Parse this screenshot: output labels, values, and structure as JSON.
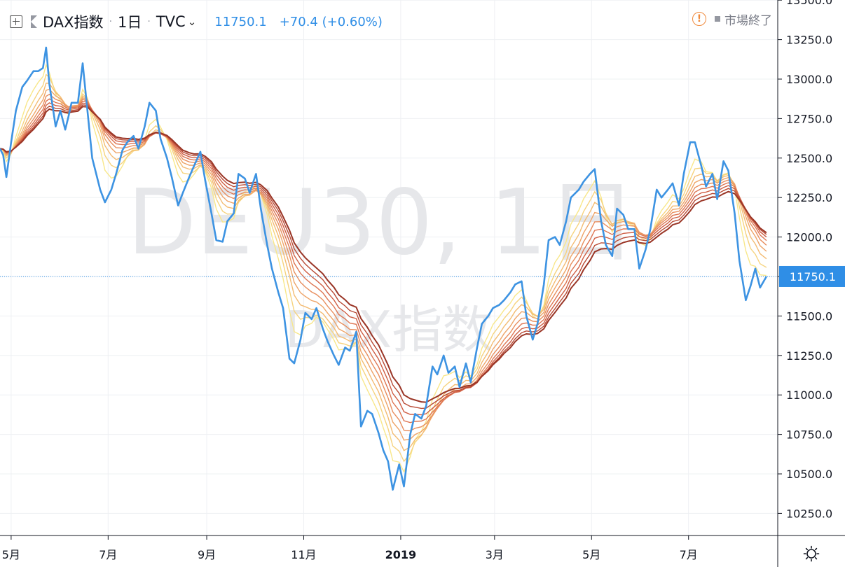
{
  "header": {
    "symbol": "DAX指数",
    "interval": "1日",
    "source": "TVC",
    "last_price": "11750.1",
    "change": "+70.4 (+0.60%)"
  },
  "status": {
    "market": "市場終了"
  },
  "watermark": {
    "line1": "DEU30, 1日",
    "line2": "DAX指数"
  },
  "colors": {
    "price_line": "#3d93e2",
    "ribbon": [
      "#f8e78a",
      "#f6d37e",
      "#f3bb72",
      "#eea468",
      "#e88e5e",
      "#dd7552",
      "#cf5e44",
      "#b84a35",
      "#9a3526"
    ],
    "grid": "#eef0f3",
    "axis_text": "#131722",
    "badge": "#2f8ee6"
  },
  "chart_data": {
    "type": "line",
    "title": "",
    "y_axis": {
      "ticks": [
        13500,
        13250,
        13000,
        12750,
        12500,
        12250,
        12000,
        11750,
        11500,
        11250,
        11000,
        10750,
        10500,
        10250
      ],
      "tick_labels": [
        "13500.0",
        "13250.0",
        "13000.0",
        "12750.0",
        "12500.0",
        "12250.0",
        "12000.0",
        "11750.0",
        "11500.0",
        "11250.0",
        "11000.0",
        "10750.0",
        "10500.0",
        "10250.0"
      ]
    },
    "x_axis": {
      "range": [
        "2018-04-24",
        "2019-08-23"
      ],
      "ticks": [
        {
          "date": "2018-05-01",
          "label": "5月",
          "bold": false
        },
        {
          "date": "2018-07-01",
          "label": "7月",
          "bold": false
        },
        {
          "date": "2018-09-01",
          "label": "9月",
          "bold": false
        },
        {
          "date": "2018-11-01",
          "label": "11月",
          "bold": false
        },
        {
          "date": "2019-01-01",
          "label": "2019",
          "bold": true
        },
        {
          "date": "2019-03-01",
          "label": "3月",
          "bold": false
        },
        {
          "date": "2019-05-01",
          "label": "5月",
          "bold": false
        },
        {
          "date": "2019-07-01",
          "label": "7月",
          "bold": false
        }
      ]
    },
    "last_value": {
      "value": 11750.1,
      "label": "11750.1"
    },
    "series": [
      {
        "values": [
          [
            "2018-04-24",
            12560
          ],
          [
            "2018-04-26",
            12520
          ],
          [
            "2018-04-28",
            12380
          ],
          [
            "2018-05-01",
            12600
          ],
          [
            "2018-05-04",
            12800
          ],
          [
            "2018-05-08",
            12950
          ],
          [
            "2018-05-11",
            12990
          ],
          [
            "2018-05-15",
            13050
          ],
          [
            "2018-05-18",
            13050
          ],
          [
            "2018-05-21",
            13070
          ],
          [
            "2018-05-23",
            13200
          ],
          [
            "2018-05-25",
            12970
          ],
          [
            "2018-05-29",
            12700
          ],
          [
            "2018-06-01",
            12800
          ],
          [
            "2018-06-04",
            12680
          ],
          [
            "2018-06-06",
            12760
          ],
          [
            "2018-06-08",
            12850
          ],
          [
            "2018-06-12",
            12850
          ],
          [
            "2018-06-15",
            13100
          ],
          [
            "2018-06-18",
            12800
          ],
          [
            "2018-06-21",
            12500
          ],
          [
            "2018-06-26",
            12300
          ],
          [
            "2018-06-29",
            12220
          ],
          [
            "2018-07-03",
            12300
          ],
          [
            "2018-07-06",
            12400
          ],
          [
            "2018-07-10",
            12550
          ],
          [
            "2018-07-13",
            12600
          ],
          [
            "2018-07-17",
            12640
          ],
          [
            "2018-07-20",
            12560
          ],
          [
            "2018-07-24",
            12700
          ],
          [
            "2018-07-27",
            12850
          ],
          [
            "2018-07-31",
            12800
          ],
          [
            "2018-08-03",
            12620
          ],
          [
            "2018-08-07",
            12500
          ],
          [
            "2018-08-10",
            12380
          ],
          [
            "2018-08-14",
            12200
          ],
          [
            "2018-08-17",
            12280
          ],
          [
            "2018-08-21",
            12380
          ],
          [
            "2018-08-24",
            12450
          ],
          [
            "2018-08-28",
            12540
          ],
          [
            "2018-08-31",
            12360
          ],
          [
            "2018-09-04",
            12150
          ],
          [
            "2018-09-07",
            11980
          ],
          [
            "2018-09-11",
            11970
          ],
          [
            "2018-09-14",
            12100
          ],
          [
            "2018-09-18",
            12150
          ],
          [
            "2018-09-21",
            12400
          ],
          [
            "2018-09-25",
            12370
          ],
          [
            "2018-09-28",
            12280
          ],
          [
            "2018-10-02",
            12400
          ],
          [
            "2018-10-05",
            12180
          ],
          [
            "2018-10-09",
            11950
          ],
          [
            "2018-10-12",
            11800
          ],
          [
            "2018-10-16",
            11650
          ],
          [
            "2018-10-19",
            11550
          ],
          [
            "2018-10-23",
            11230
          ],
          [
            "2018-10-26",
            11200
          ],
          [
            "2018-10-30",
            11350
          ],
          [
            "2018-11-02",
            11520
          ],
          [
            "2018-11-06",
            11480
          ],
          [
            "2018-11-09",
            11550
          ],
          [
            "2018-11-13",
            11420
          ],
          [
            "2018-11-16",
            11340
          ],
          [
            "2018-11-20",
            11250
          ],
          [
            "2018-11-23",
            11190
          ],
          [
            "2018-11-27",
            11300
          ],
          [
            "2018-11-30",
            11280
          ],
          [
            "2018-12-04",
            11400
          ],
          [
            "2018-12-07",
            10800
          ],
          [
            "2018-12-11",
            10900
          ],
          [
            "2018-12-14",
            10880
          ],
          [
            "2018-12-18",
            10760
          ],
          [
            "2018-12-21",
            10650
          ],
          [
            "2018-12-24",
            10580
          ],
          [
            "2018-12-27",
            10400
          ],
          [
            "2018-12-31",
            10560
          ],
          [
            "2019-01-03",
            10420
          ],
          [
            "2019-01-07",
            10750
          ],
          [
            "2019-01-10",
            10880
          ],
          [
            "2019-01-14",
            10850
          ],
          [
            "2019-01-17",
            10930
          ],
          [
            "2019-01-21",
            11180
          ],
          [
            "2019-01-24",
            11130
          ],
          [
            "2019-01-28",
            11250
          ],
          [
            "2019-01-31",
            11140
          ],
          [
            "2019-02-04",
            11180
          ],
          [
            "2019-02-07",
            11050
          ],
          [
            "2019-02-11",
            11200
          ],
          [
            "2019-02-14",
            11080
          ],
          [
            "2019-02-18",
            11300
          ],
          [
            "2019-02-21",
            11450
          ],
          [
            "2019-02-25",
            11500
          ],
          [
            "2019-02-28",
            11550
          ],
          [
            "2019-03-04",
            11570
          ],
          [
            "2019-03-07",
            11600
          ],
          [
            "2019-03-11",
            11650
          ],
          [
            "2019-03-14",
            11700
          ],
          [
            "2019-03-18",
            11720
          ],
          [
            "2019-03-21",
            11500
          ],
          [
            "2019-03-25",
            11350
          ],
          [
            "2019-03-28",
            11450
          ],
          [
            "2019-04-01",
            11700
          ],
          [
            "2019-04-04",
            11980
          ],
          [
            "2019-04-08",
            12000
          ],
          [
            "2019-04-11",
            11950
          ],
          [
            "2019-04-15",
            12100
          ],
          [
            "2019-04-18",
            12250
          ],
          [
            "2019-04-23",
            12300
          ],
          [
            "2019-04-26",
            12350
          ],
          [
            "2019-04-30",
            12400
          ],
          [
            "2019-05-03",
            12430
          ],
          [
            "2019-05-07",
            12100
          ],
          [
            "2019-05-10",
            11950
          ],
          [
            "2019-05-14",
            11880
          ],
          [
            "2019-05-17",
            12180
          ],
          [
            "2019-05-21",
            12140
          ],
          [
            "2019-05-24",
            12050
          ],
          [
            "2019-05-28",
            12050
          ],
          [
            "2019-05-31",
            11800
          ],
          [
            "2019-06-04",
            11920
          ],
          [
            "2019-06-07",
            12050
          ],
          [
            "2019-06-11",
            12300
          ],
          [
            "2019-06-14",
            12250
          ],
          [
            "2019-06-18",
            12300
          ],
          [
            "2019-06-21",
            12340
          ],
          [
            "2019-06-25",
            12200
          ],
          [
            "2019-06-28",
            12400
          ],
          [
            "2019-07-02",
            12600
          ],
          [
            "2019-07-05",
            12600
          ],
          [
            "2019-07-09",
            12450
          ],
          [
            "2019-07-12",
            12320
          ],
          [
            "2019-07-16",
            12400
          ],
          [
            "2019-07-19",
            12240
          ],
          [
            "2019-07-23",
            12480
          ],
          [
            "2019-07-26",
            12420
          ],
          [
            "2019-07-30",
            12150
          ],
          [
            "2019-08-02",
            11850
          ],
          [
            "2019-08-06",
            11600
          ],
          [
            "2019-08-09",
            11690
          ],
          [
            "2019-08-12",
            11800
          ],
          [
            "2019-08-15",
            11680
          ],
          [
            "2019-08-19",
            11750
          ]
        ]
      }
    ]
  }
}
